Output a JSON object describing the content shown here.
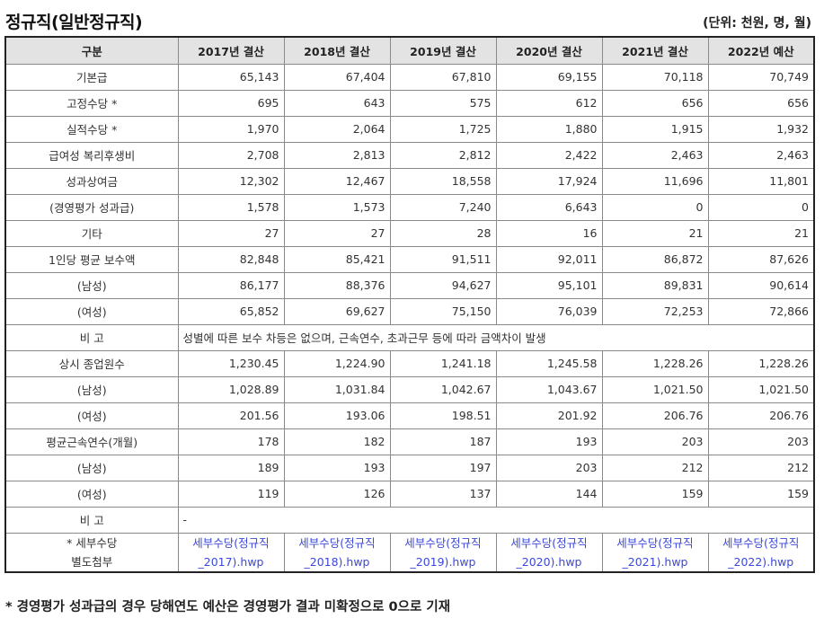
{
  "title": "정규직(일반정규직)",
  "unit": "(단위: 천원, 명, 월)",
  "table": {
    "headers": [
      "구분",
      "2017년 결산",
      "2018년 결산",
      "2019년 결산",
      "2020년 결산",
      "2021년 결산",
      "2022년 예산"
    ],
    "rows": [
      {
        "label": "기본급",
        "values": [
          "65,143",
          "67,404",
          "67,810",
          "69,155",
          "70,118",
          "70,749"
        ]
      },
      {
        "label": "고정수당 *",
        "values": [
          "695",
          "643",
          "575",
          "612",
          "656",
          "656"
        ]
      },
      {
        "label": "실적수당 *",
        "values": [
          "1,970",
          "2,064",
          "1,725",
          "1,880",
          "1,915",
          "1,932"
        ]
      },
      {
        "label": "급여성 복리후생비",
        "values": [
          "2,708",
          "2,813",
          "2,812",
          "2,422",
          "2,463",
          "2,463"
        ]
      },
      {
        "label": "성과상여금",
        "values": [
          "12,302",
          "12,467",
          "18,558",
          "17,924",
          "11,696",
          "11,801"
        ]
      },
      {
        "label": "(경영평가 성과급)",
        "values": [
          "1,578",
          "1,573",
          "7,240",
          "6,643",
          "0",
          "0"
        ]
      },
      {
        "label": "기타",
        "values": [
          "27",
          "27",
          "28",
          "16",
          "21",
          "21"
        ]
      },
      {
        "label": "1인당 평균 보수액",
        "values": [
          "82,848",
          "85,421",
          "91,511",
          "92,011",
          "86,872",
          "87,626"
        ]
      },
      {
        "label": "(남성)",
        "values": [
          "86,177",
          "88,376",
          "94,627",
          "95,101",
          "89,831",
          "90,614"
        ]
      },
      {
        "label": "(여성)",
        "values": [
          "65,852",
          "69,627",
          "75,150",
          "76,039",
          "72,253",
          "72,866"
        ]
      }
    ],
    "note1": {
      "label": "비 고",
      "text": "성별에 따른 보수 차등은 없으며, 근속연수, 초과근무 등에 따라 금액차이 발생"
    },
    "rows2": [
      {
        "label": "상시 종업원수",
        "values": [
          "1,230.45",
          "1,224.90",
          "1,241.18",
          "1,245.58",
          "1,228.26",
          "1,228.26"
        ]
      },
      {
        "label": "(남성)",
        "values": [
          "1,028.89",
          "1,031.84",
          "1,042.67",
          "1,043.67",
          "1,021.50",
          "1,021.50"
        ]
      },
      {
        "label": "(여성)",
        "values": [
          "201.56",
          "193.06",
          "198.51",
          "201.92",
          "206.76",
          "206.76"
        ]
      },
      {
        "label": "평균근속연수(개월)",
        "values": [
          "178",
          "182",
          "187",
          "193",
          "203",
          "203"
        ]
      },
      {
        "label": "(남성)",
        "values": [
          "189",
          "193",
          "197",
          "203",
          "212",
          "212"
        ]
      },
      {
        "label": "(여성)",
        "values": [
          "119",
          "126",
          "137",
          "144",
          "159",
          "159"
        ]
      }
    ],
    "note2": {
      "label": "비 고",
      "text": "-"
    },
    "attachments": {
      "label_line1": "* 세부수당",
      "label_line2": "별도첨부",
      "links": [
        {
          "line1": "세부수당(정규직",
          "line2": "_2017).hwp"
        },
        {
          "line1": "세부수당(정규직",
          "line2": "_2018).hwp"
        },
        {
          "line1": "세부수당(정규직",
          "line2": "_2019).hwp"
        },
        {
          "line1": "세부수당(정규직",
          "line2": "_2020).hwp"
        },
        {
          "line1": "세부수당(정규직",
          "line2": "_2021).hwp"
        },
        {
          "line1": "세부수당(정규직",
          "line2": "_2022).hwp"
        }
      ]
    }
  },
  "footnote": "* 경영평가 성과급의 경우 당해연도 예산은 경영평가 결과 미확정으로 0으로 기재",
  "colors": {
    "header_bg": "#e3e3e3",
    "link": "#3b48d8",
    "border": "#8a8a8a"
  }
}
